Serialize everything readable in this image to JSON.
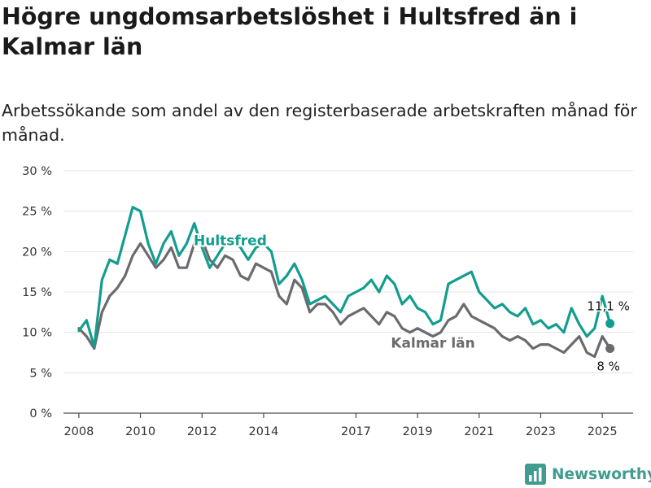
{
  "header": {
    "title": "Högre ungdomsarbetslöshet i Hultsfred än i Kalmar län",
    "subtitle": "Arbetssökande som andel av den registerbaserade arbetskraften månad för månad."
  },
  "brand": {
    "name": "Newsworthy",
    "icon": "bar-chart-logo-icon",
    "color": "#3f9c8f"
  },
  "chart_data": {
    "type": "line",
    "x_ticks": [
      "2008",
      "2010",
      "2012",
      "2014",
      "2017",
      "2019",
      "2021",
      "2023",
      "2025"
    ],
    "y_ticks": [
      "0 %",
      "5 %",
      "10 %",
      "15 %",
      "20 %",
      "25 %",
      "30 %"
    ],
    "ylim": [
      0,
      30
    ],
    "xlim": [
      "2007-07",
      "2026-01"
    ],
    "grid": true,
    "series": [
      {
        "name": "Hultsfred",
        "color": "#139d8f",
        "end_label": "11,1 %",
        "x": [
          "2008-01",
          "2008-04",
          "2008-07",
          "2008-10",
          "2009-01",
          "2009-04",
          "2009-07",
          "2009-10",
          "2010-01",
          "2010-04",
          "2010-07",
          "2010-10",
          "2011-01",
          "2011-04",
          "2011-07",
          "2011-10",
          "2012-01",
          "2012-04",
          "2012-07",
          "2012-10",
          "2013-01",
          "2013-04",
          "2013-07",
          "2013-10",
          "2014-01",
          "2014-04",
          "2014-07",
          "2014-10",
          "2015-01",
          "2015-04",
          "2015-07",
          "2015-10",
          "2016-01",
          "2016-04",
          "2016-07",
          "2016-10",
          "2017-01",
          "2017-04",
          "2017-07",
          "2017-10",
          "2018-01",
          "2018-04",
          "2018-07",
          "2018-10",
          "2019-01",
          "2019-04",
          "2019-07",
          "2019-10",
          "2020-01",
          "2020-04",
          "2020-07",
          "2020-10",
          "2021-01",
          "2021-04",
          "2021-07",
          "2021-10",
          "2022-01",
          "2022-04",
          "2022-07",
          "2022-10",
          "2023-01",
          "2023-04",
          "2023-07",
          "2023-10",
          "2024-01",
          "2024-04",
          "2024-07",
          "2024-10",
          "2025-01",
          "2025-04"
        ],
        "values": [
          10.2,
          11.5,
          8.2,
          16.5,
          19.0,
          18.5,
          22.0,
          25.5,
          25.0,
          21.0,
          18.5,
          21.0,
          22.5,
          19.5,
          21.0,
          23.5,
          20.5,
          18.0,
          19.5,
          21.0,
          21.5,
          20.5,
          19.0,
          20.5,
          21.0,
          20.0,
          16.0,
          17.0,
          18.5,
          16.5,
          13.5,
          14.0,
          14.5,
          13.5,
          12.5,
          14.5,
          15.0,
          15.5,
          16.5,
          15.0,
          17.0,
          16.0,
          13.5,
          14.5,
          13.0,
          12.5,
          11.0,
          11.5,
          16.0,
          16.5,
          17.0,
          17.5,
          15.0,
          14.0,
          13.0,
          13.5,
          12.5,
          12.0,
          13.0,
          11.0,
          11.5,
          10.5,
          11.0,
          10.0,
          13.0,
          11.0,
          9.5,
          10.5,
          14.5,
          11.1
        ]
      },
      {
        "name": "Kalmar län",
        "color": "#6b6b6f",
        "end_label": "8 %",
        "x": [
          "2008-01",
          "2008-04",
          "2008-07",
          "2008-10",
          "2009-01",
          "2009-04",
          "2009-07",
          "2009-10",
          "2010-01",
          "2010-04",
          "2010-07",
          "2010-10",
          "2011-01",
          "2011-04",
          "2011-07",
          "2011-10",
          "2012-01",
          "2012-04",
          "2012-07",
          "2012-10",
          "2013-01",
          "2013-04",
          "2013-07",
          "2013-10",
          "2014-01",
          "2014-04",
          "2014-07",
          "2014-10",
          "2015-01",
          "2015-04",
          "2015-07",
          "2015-10",
          "2016-01",
          "2016-04",
          "2016-07",
          "2016-10",
          "2017-01",
          "2017-04",
          "2017-07",
          "2017-10",
          "2018-01",
          "2018-04",
          "2018-07",
          "2018-10",
          "2019-01",
          "2019-04",
          "2019-07",
          "2019-10",
          "2020-01",
          "2020-04",
          "2020-07",
          "2020-10",
          "2021-01",
          "2021-04",
          "2021-07",
          "2021-10",
          "2022-01",
          "2022-04",
          "2022-07",
          "2022-10",
          "2023-01",
          "2023-04",
          "2023-07",
          "2023-10",
          "2024-01",
          "2024-04",
          "2024-07",
          "2024-10",
          "2025-01",
          "2025-04"
        ],
        "values": [
          10.5,
          9.5,
          8.0,
          12.5,
          14.5,
          15.5,
          17.0,
          19.5,
          21.0,
          19.5,
          18.0,
          19.0,
          20.5,
          18.0,
          18.0,
          21.0,
          21.5,
          19.0,
          18.0,
          19.5,
          19.0,
          17.0,
          16.5,
          18.5,
          18.0,
          17.5,
          14.5,
          13.5,
          16.5,
          15.5,
          12.5,
          13.5,
          13.5,
          12.5,
          11.0,
          12.0,
          12.5,
          13.0,
          12.0,
          11.0,
          12.5,
          12.0,
          10.5,
          10.0,
          10.5,
          10.0,
          9.5,
          10.0,
          11.5,
          12.0,
          13.5,
          12.0,
          11.5,
          11.0,
          10.5,
          9.5,
          9.0,
          9.5,
          9.0,
          8.0,
          8.5,
          8.5,
          8.0,
          7.5,
          8.5,
          9.5,
          7.5,
          7.0,
          9.5,
          8.0
        ]
      }
    ],
    "annotations": [
      {
        "series": "Hultsfred",
        "text": "Hultsfred",
        "at": "2012-12",
        "y": 21.4
      },
      {
        "series": "Kalmar län",
        "text": "Kalmar län",
        "at": "2019-07",
        "y": 8.7
      }
    ]
  }
}
